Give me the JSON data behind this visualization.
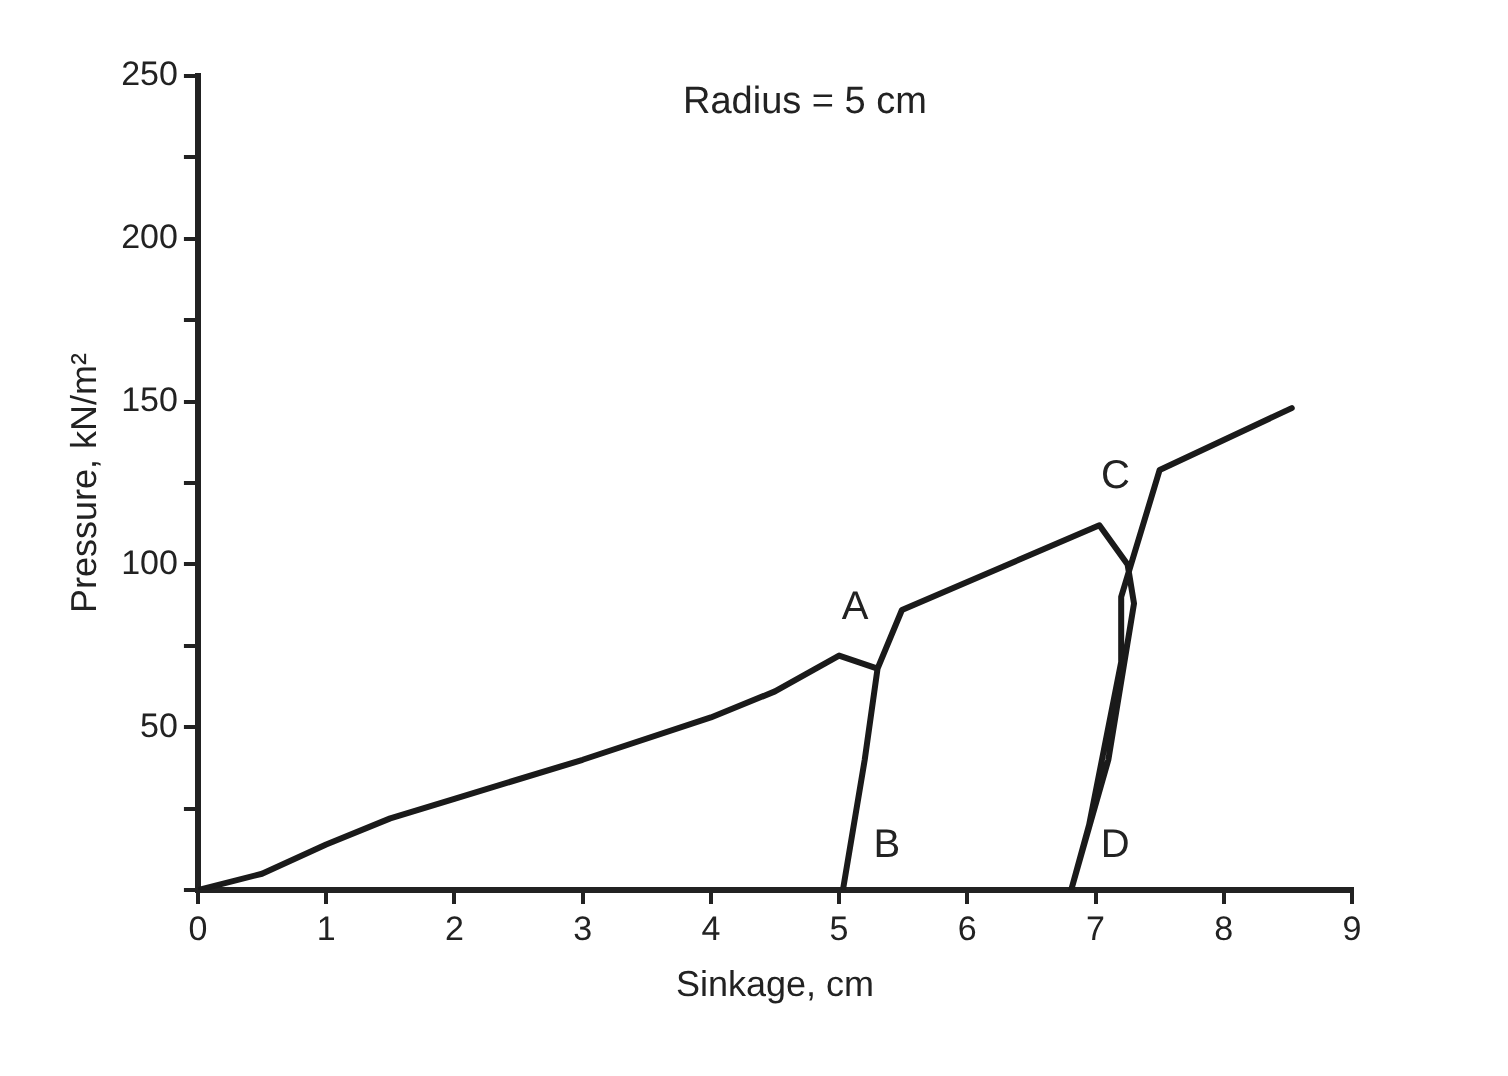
{
  "chart_data": {
    "type": "line",
    "title": "Radius = 5 cm",
    "xlabel": "Sinkage, cm",
    "ylabel": "Pressure, kN/m²",
    "xlim": [
      0,
      9
    ],
    "xticks": [
      0,
      1,
      2,
      3,
      4,
      5,
      6,
      7,
      8,
      9
    ],
    "ylim": [
      0,
      250
    ],
    "yticks": [
      {
        "value": 0,
        "label": null
      },
      {
        "value": 25,
        "label": null
      },
      50,
      {
        "value": 75,
        "label": null
      },
      100,
      {
        "value": 125,
        "label": null
      },
      150,
      {
        "value": 175,
        "label": null
      },
      200,
      {
        "value": 225,
        "label": null
      },
      250
    ],
    "grid": false,
    "legend": false,
    "marker": "none",
    "line_style": "solid",
    "series": [
      {
        "color": "#1a1a1a",
        "x": [
          0,
          0.5,
          1,
          1.5,
          2,
          3,
          4,
          4.5,
          5,
          5.3,
          5.2,
          5.03,
          5.2,
          5.3,
          5.49,
          7.03,
          7.25,
          7.3,
          7.1,
          6.81,
          6.95,
          7.2,
          7.2,
          7.5,
          8.53
        ],
        "values": [
          0,
          5,
          14,
          22,
          28,
          40,
          53,
          61,
          72,
          68,
          40,
          0,
          40,
          68,
          86,
          112,
          100,
          88,
          40,
          0,
          20,
          70,
          90,
          129,
          148
        ]
      }
    ],
    "annotations": [
      {
        "text": "A",
        "x": 5,
        "y": 72
      },
      {
        "text": "B",
        "x": 5.03,
        "y": 0
      },
      {
        "text": "C",
        "x": 7.03,
        "y": 112
      },
      {
        "text": "D",
        "x": 6.81,
        "y": 0
      }
    ]
  }
}
